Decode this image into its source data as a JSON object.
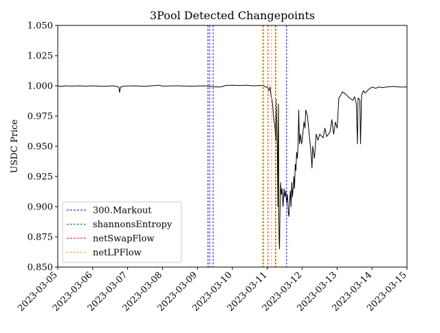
{
  "chart_data": {
    "type": "line",
    "title": "3Pool Detected Changepoints",
    "xlabel": "",
    "ylabel": "USDC Price",
    "xlim": [
      "2023-03-05",
      "2023-03-15"
    ],
    "ylim": [
      0.85,
      1.05
    ],
    "x_tick_labels": [
      "2023-03-05",
      "2023-03-06",
      "2023-03-07",
      "2023-03-08",
      "2023-03-09",
      "2023-03-10",
      "2023-03-11",
      "2023-03-12",
      "2023-03-13",
      "2023-03-14",
      "2023-03-15"
    ],
    "y_tick_labels": [
      "0.850",
      "0.875",
      "0.900",
      "0.925",
      "0.950",
      "0.975",
      "1.000",
      "1.025",
      "1.050"
    ],
    "grid": false,
    "legend_position": "lower-left",
    "series": [
      {
        "name": "USDC price",
        "color": "#000000",
        "points": [
          [
            0.0,
            1.0
          ],
          [
            0.1,
            0.9995
          ],
          [
            0.2,
            1.0
          ],
          [
            0.4,
            0.9998
          ],
          [
            0.6,
            1.0
          ],
          [
            0.8,
            0.9997
          ],
          [
            1.0,
            1.0
          ],
          [
            1.3,
            0.9996
          ],
          [
            1.6,
            1.0
          ],
          [
            1.75,
            0.999
          ],
          [
            1.77,
            0.9945
          ],
          [
            1.8,
            0.999
          ],
          [
            1.9,
            0.9998
          ],
          [
            2.2,
            1.0
          ],
          [
            2.5,
            0.9996
          ],
          [
            2.9,
            1.0005
          ],
          [
            3.0,
            0.9998
          ],
          [
            3.4,
            1.0
          ],
          [
            3.8,
            0.9997
          ],
          [
            4.2,
            1.0
          ],
          [
            4.4,
            0.9995
          ],
          [
            4.6,
            0.999
          ],
          [
            4.7,
            0.9993
          ],
          [
            4.8,
            1.0003
          ],
          [
            5.0,
            1.0005
          ],
          [
            5.2,
            1.0002
          ],
          [
            5.4,
            1.0005
          ],
          [
            5.6,
            1.0
          ],
          [
            5.8,
            1.0003
          ],
          [
            5.9,
            1.0
          ],
          [
            5.95,
            0.999
          ],
          [
            6.0,
            0.999
          ],
          [
            6.05,
            0.996
          ],
          [
            6.08,
            0.999
          ],
          [
            6.1,
            0.993
          ],
          [
            6.13,
            0.989
          ],
          [
            6.15,
            0.985
          ],
          [
            6.18,
            0.974
          ],
          [
            6.2,
            0.97
          ],
          [
            6.22,
            0.965
          ],
          [
            6.24,
            0.955
          ],
          [
            6.26,
            0.99
          ],
          [
            6.28,
            0.956
          ],
          [
            6.29,
            0.94
          ],
          [
            6.3,
            0.9
          ],
          [
            6.31,
            0.96
          ],
          [
            6.32,
            0.985
          ],
          [
            6.33,
            0.89
          ],
          [
            6.34,
            0.87
          ],
          [
            6.35,
            0.865
          ],
          [
            6.36,
            0.89
          ],
          [
            6.37,
            0.905
          ],
          [
            6.38,
            0.92
          ],
          [
            6.4,
            0.91
          ],
          [
            6.42,
            0.915
          ],
          [
            6.45,
            0.9
          ],
          [
            6.48,
            0.915
          ],
          [
            6.5,
            0.908
          ],
          [
            6.53,
            0.913
          ],
          [
            6.55,
            0.903
          ],
          [
            6.58,
            0.91
          ],
          [
            6.6,
            0.895
          ],
          [
            6.62,
            0.892
          ],
          [
            6.64,
            0.905
          ],
          [
            6.66,
            0.913
          ],
          [
            6.68,
            0.9
          ],
          [
            6.7,
            0.92
          ],
          [
            6.72,
            0.908
          ],
          [
            6.74,
            0.915
          ],
          [
            6.76,
            0.925
          ],
          [
            6.78,
            0.915
          ],
          [
            6.8,
            0.935
          ],
          [
            6.82,
            0.93
          ],
          [
            6.84,
            0.945
          ],
          [
            6.86,
            0.94
          ],
          [
            6.88,
            0.95
          ],
          [
            6.9,
            0.98
          ],
          [
            6.92,
            0.952
          ],
          [
            6.95,
            0.96
          ],
          [
            6.98,
            0.952
          ],
          [
            7.0,
            0.955
          ],
          [
            7.05,
            0.97
          ],
          [
            7.08,
            0.965
          ],
          [
            7.1,
            0.98
          ],
          [
            7.15,
            0.975
          ],
          [
            7.2,
            0.96
          ],
          [
            7.25,
            0.945
          ],
          [
            7.28,
            0.932
          ],
          [
            7.3,
            0.95
          ],
          [
            7.35,
            0.94
          ],
          [
            7.4,
            0.96
          ],
          [
            7.45,
            0.955
          ],
          [
            7.5,
            0.96
          ],
          [
            7.6,
            0.957
          ],
          [
            7.65,
            0.965
          ],
          [
            7.7,
            0.958
          ],
          [
            7.8,
            0.962
          ],
          [
            7.85,
            0.972
          ],
          [
            7.9,
            0.96
          ],
          [
            7.95,
            0.97
          ],
          [
            8.0,
            0.965
          ],
          [
            8.05,
            0.99
          ],
          [
            8.1,
            0.992
          ],
          [
            8.15,
            0.995
          ],
          [
            8.25,
            0.993
          ],
          [
            8.35,
            0.99
          ],
          [
            8.45,
            0.988
          ],
          [
            8.5,
            0.991
          ],
          [
            8.55,
            0.985
          ],
          [
            8.58,
            0.952
          ],
          [
            8.6,
            0.99
          ],
          [
            8.65,
            0.988
          ],
          [
            8.67,
            0.952
          ],
          [
            8.7,
            0.992
          ],
          [
            8.75,
            0.996
          ],
          [
            8.8,
            0.994
          ],
          [
            8.9,
            0.997
          ],
          [
            9.0,
            0.999
          ],
          [
            9.1,
            0.998
          ],
          [
            9.2,
            0.999
          ],
          [
            9.3,
            0.9985
          ],
          [
            9.4,
            0.999
          ],
          [
            9.6,
            0.9995
          ],
          [
            9.8,
            0.999
          ],
          [
            10.0,
            0.999
          ]
        ]
      }
    ],
    "changepoints": [
      {
        "name": "300.Markout",
        "color": "#0000ff",
        "days": [
          4.3,
          4.35,
          4.45,
          6.55
        ]
      },
      {
        "name": "shannonsEntropy",
        "color": "#008000",
        "days": [
          5.89
        ]
      },
      {
        "name": "netSwapFlow",
        "color": "#ff0000",
        "days": [
          6.02,
          6.23
        ]
      },
      {
        "name": "netLPFlow",
        "color": "#ffa500",
        "days": [
          5.86,
          6.12,
          6.26
        ]
      }
    ]
  }
}
